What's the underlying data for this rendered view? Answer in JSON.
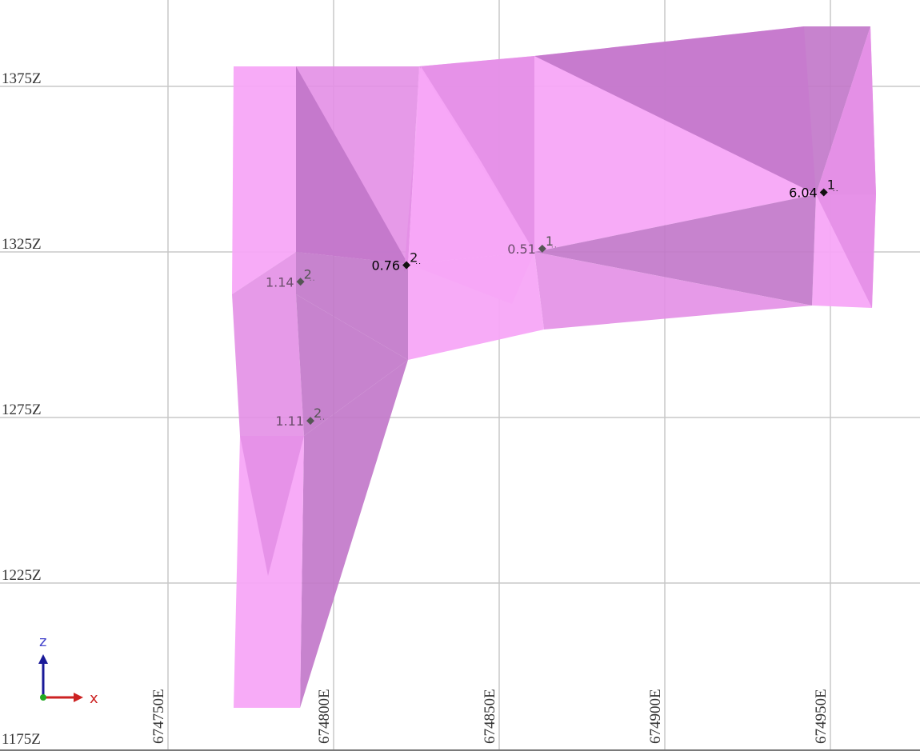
{
  "view": {
    "easting_range": [
      674700,
      675000
    ],
    "elevation_range": [
      1175,
      1400
    ],
    "grid_visible": true,
    "tick_eastings": [
      674750,
      674800,
      674850,
      674900,
      674950
    ],
    "tick_elevations": [
      1375,
      1325,
      1275,
      1225,
      1175
    ],
    "easting_tick_labels": [
      "674750E",
      "674800E",
      "674850E",
      "674900E",
      "674950E"
    ],
    "elevation_tick_labels": [
      "1375Z",
      "1325Z",
      "1275Z",
      "1225Z",
      "1175Z"
    ]
  },
  "colors": {
    "grid": "#c8c8c8",
    "solid_light": "#f7a6f7",
    "solid_mid": "#e38fe6",
    "solid_dark": "#c175c9",
    "marker": "#111111",
    "axis_x": "#cc2222",
    "axis_z": "#1a1a99",
    "axis_y": "#22aa22"
  },
  "sample_points": [
    {
      "id": "p1",
      "easting": 674790,
      "elevation": 1316,
      "value": "1.14",
      "sample": "2",
      "faded": true
    },
    {
      "id": "p2",
      "easting": 674822,
      "elevation": 1321,
      "value": "0.76",
      "sample": "2",
      "faded": false
    },
    {
      "id": "p3",
      "easting": 674863,
      "elevation": 1326,
      "value": "0.51",
      "sample": "1",
      "faded": true
    },
    {
      "id": "p4",
      "easting": 674948,
      "elevation": 1343,
      "value": "6.04",
      "sample": "1",
      "faded": false
    },
    {
      "id": "p5",
      "easting": 674793,
      "elevation": 1274,
      "value": "1.11",
      "sample": "2",
      "faded": true
    }
  ],
  "axis_triad": {
    "x_label": "x",
    "z_label": "z"
  }
}
